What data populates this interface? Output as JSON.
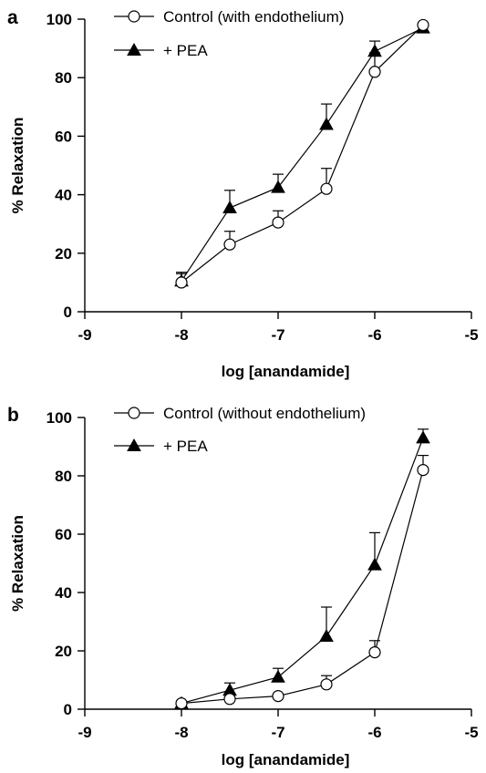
{
  "chart_data": [
    {
      "type": "line",
      "panel_label": "a",
      "xlabel": "log [anandamide]",
      "ylabel": "% Relaxation",
      "xlim": [
        -9,
        -5
      ],
      "ylim": [
        0,
        100
      ],
      "xticks": [
        -9,
        -8,
        -7,
        -6,
        -5
      ],
      "yticks": [
        0,
        20,
        40,
        60,
        80,
        100
      ],
      "x": [
        -8,
        -7.5,
        -7,
        -6.5,
        -6,
        -5.5
      ],
      "legend_position": "top-left",
      "series": [
        {
          "name": "Control (with endothelium)",
          "marker": "open-circle",
          "values": [
            10,
            23,
            30.5,
            42,
            82,
            98
          ],
          "error": [
            3,
            4.5,
            4,
            7,
            6.5,
            0
          ]
        },
        {
          "name": "+ PEA",
          "marker": "filled-triangle",
          "values": [
            10.5,
            35.5,
            42.5,
            64,
            89,
            97
          ],
          "error": [
            3,
            6,
            4.5,
            7,
            3.5,
            0
          ]
        }
      ]
    },
    {
      "type": "line",
      "panel_label": "b",
      "xlabel": "log [anandamide]",
      "ylabel": "% Relaxation",
      "xlim": [
        -9,
        -5
      ],
      "ylim": [
        0,
        100
      ],
      "xticks": [
        -9,
        -8,
        -7,
        -6,
        -5
      ],
      "yticks": [
        0,
        20,
        40,
        60,
        80,
        100
      ],
      "x": [
        -8,
        -7.5,
        -7,
        -6.5,
        -6,
        -5.5
      ],
      "legend_position": "top-left",
      "series": [
        {
          "name": "Control (without endothelium)",
          "marker": "open-circle",
          "values": [
            2,
            3.5,
            4.5,
            8.5,
            19.5,
            82
          ],
          "error": [
            0,
            0,
            0,
            3,
            4,
            5
          ]
        },
        {
          "name": "+ PEA",
          "marker": "filled-triangle",
          "values": [
            2,
            6.5,
            11,
            25,
            49.5,
            93
          ],
          "error": [
            0,
            2.5,
            3,
            10,
            11,
            3
          ]
        }
      ]
    }
  ]
}
